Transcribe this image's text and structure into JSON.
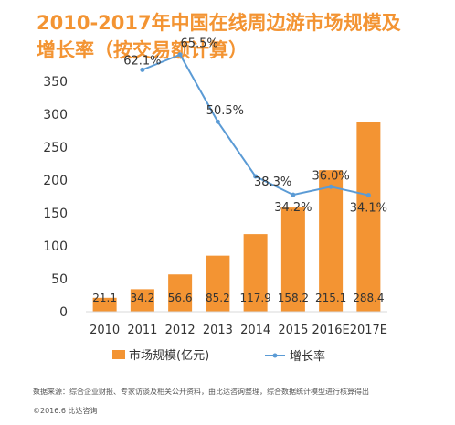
{
  "title": "2010-2017年中国在线周边游市场规模及\n增长率（按交易额计算）",
  "chart_data": {
    "type": "bar",
    "categories": [
      "2010",
      "2011",
      "2012",
      "2013",
      "2014",
      "2015",
      "2016E",
      "2017E"
    ],
    "series": [
      {
        "name": "市场规模(亿元)",
        "type": "bar",
        "values": [
          21.1,
          34.2,
          56.6,
          85.2,
          117.9,
          158.2,
          215.1,
          288.4
        ],
        "labels": [
          "21.1",
          "34.2",
          "56.6",
          "85.2",
          "117.9",
          "158.2",
          "215.1",
          "288.4"
        ],
        "color": "#f39433"
      },
      {
        "name": "增长率",
        "type": "line",
        "values": [
          null,
          62.1,
          65.5,
          50.5,
          38.3,
          34.2,
          36.0,
          34.1
        ],
        "labels": [
          "",
          "62.1%",
          "65.5%",
          "50.5%",
          "38.3%",
          "34.2%",
          "36.0%",
          "34.1%"
        ],
        "color": "#5b9bd5"
      }
    ],
    "ylim": [
      0,
      350
    ],
    "yticks": [
      "0",
      "50",
      "100",
      "150",
      "200",
      "250",
      "300",
      "350"
    ],
    "grid": false,
    "legend": "bottom"
  },
  "source_note": "数据来源：综合企业财报、专家访谈及相关公开资料，由比达咨询整理，综合数据统计模型进行核算得出",
  "copyright": "©2016.6  比达咨询"
}
